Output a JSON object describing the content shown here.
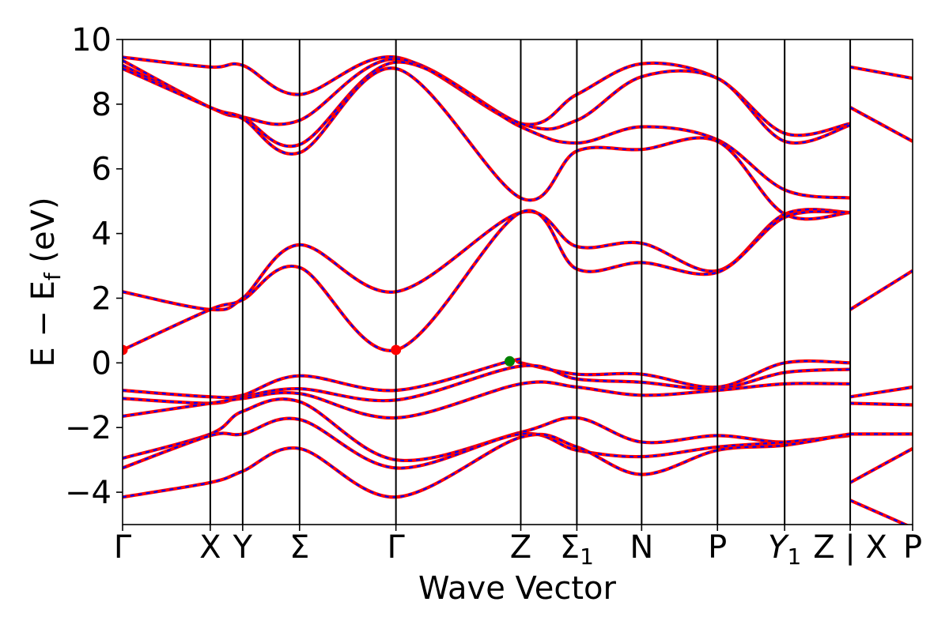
{
  "chart_data": {
    "type": "line",
    "xlabel": "Wave Vector",
    "ylabel": "E − E",
    "ylabel_sub": "f",
    "ylabel_unit": " (eV)",
    "ylim": [
      -5,
      10
    ],
    "xlim": [
      0,
      10
    ],
    "grid": false,
    "legend": "none",
    "y_ticks": [
      -4,
      -2,
      0,
      2,
      4,
      6,
      8,
      10
    ],
    "y_tick_labels": [
      "−4",
      "−2",
      "0",
      "2",
      "4",
      "6",
      "8",
      "10"
    ],
    "high_symmetry_points": [
      {
        "label": "Γ",
        "sub": "",
        "italic": false,
        "x": 0.0
      },
      {
        "label": "X",
        "sub": "",
        "italic": false,
        "x": 1.11
      },
      {
        "label": "Y",
        "sub": "",
        "italic": false,
        "x": 1.52
      },
      {
        "label": "Σ",
        "sub": "",
        "italic": false,
        "x": 2.24
      },
      {
        "label": "Γ",
        "sub": "",
        "italic": false,
        "x": 3.46
      },
      {
        "label": "Z",
        "sub": "",
        "italic": false,
        "x": 5.04
      },
      {
        "label": "Σ",
        "sub": "1",
        "italic": false,
        "x": 5.75
      },
      {
        "label": "N",
        "sub": "",
        "italic": false,
        "x": 6.57
      },
      {
        "label": "P",
        "sub": "",
        "italic": false,
        "x": 7.53
      },
      {
        "label": "Y",
        "sub": "1",
        "italic": true,
        "x": 8.38
      },
      {
        "label": "Z | X",
        "sub": "",
        "italic": false,
        "x": 9.21
      },
      {
        "label": "P",
        "sub": "",
        "italic": false,
        "x": 10.0
      }
    ],
    "series": [
      {
        "x": [
          0,
          1.11,
          1.52,
          2.24,
          3.46,
          5.04,
          5.75,
          6.57,
          7.53,
          8.38,
          9.21
        ],
        "y": [
          9.45,
          9.15,
          9.2,
          8.3,
          9.45,
          7.4,
          8.3,
          9.25,
          8.8,
          7.1,
          7.4
        ]
      },
      {
        "x": [
          0,
          1.11,
          1.52,
          2.24,
          3.46,
          5.04,
          5.75,
          6.57,
          7.53,
          8.38,
          9.21
        ],
        "y": [
          9.35,
          7.9,
          7.6,
          7.5,
          9.4,
          7.4,
          7.5,
          8.85,
          8.8,
          6.85,
          7.35
        ]
      },
      {
        "x": [
          0,
          1.11,
          1.52,
          2.24,
          3.46,
          5.04,
          5.75,
          6.57,
          7.53,
          8.38,
          9.21
        ],
        "y": [
          9.2,
          7.9,
          7.6,
          6.75,
          9.3,
          7.3,
          6.8,
          7.3,
          6.9,
          5.35,
          5.1
        ]
      },
      {
        "x": [
          0,
          1.11,
          1.52,
          2.24,
          3.46,
          5.04,
          5.75,
          6.57,
          7.53,
          8.38,
          9.21
        ],
        "y": [
          9.1,
          7.9,
          7.55,
          6.5,
          9.1,
          5.1,
          6.55,
          6.6,
          6.85,
          4.6,
          4.65
        ]
      },
      {
        "x": [
          0,
          1.11,
          1.52,
          2.24,
          3.46,
          5.04,
          5.75,
          6.57,
          7.53,
          8.38,
          9.21
        ],
        "y": [
          2.2,
          1.65,
          2.0,
          3.65,
          2.2,
          4.65,
          3.6,
          3.7,
          2.85,
          4.6,
          4.65
        ]
      },
      {
        "x": [
          0,
          1.11,
          1.52,
          2.24,
          3.46,
          5.04,
          5.75,
          6.57,
          7.53,
          8.38,
          9.21
        ],
        "y": [
          0.4,
          1.65,
          1.95,
          2.95,
          0.4,
          4.65,
          2.9,
          3.1,
          2.8,
          4.5,
          4.65
        ]
      },
      {
        "x": [
          0,
          1.11,
          1.52,
          2.24,
          3.46,
          4.9,
          5.04,
          5.75,
          6.57,
          7.53,
          8.38,
          9.21
        ],
        "y": [
          -0.85,
          -1.05,
          -1.0,
          -0.4,
          -0.85,
          0.05,
          0.0,
          -0.35,
          -0.35,
          -0.75,
          0.0,
          0.0
        ]
      },
      {
        "x": [
          0,
          1.11,
          1.52,
          2.24,
          3.46,
          5.04,
          5.75,
          6.57,
          7.53,
          8.38,
          9.21
        ],
        "y": [
          -1.1,
          -1.25,
          -1.05,
          -0.8,
          -1.15,
          -0.1,
          -0.5,
          -0.6,
          -0.8,
          -0.3,
          -0.2
        ]
      },
      {
        "x": [
          0,
          1.11,
          1.52,
          2.24,
          3.46,
          5.04,
          5.75,
          6.57,
          7.53,
          8.38,
          9.21
        ],
        "y": [
          -1.65,
          -1.25,
          -1.1,
          -0.95,
          -1.7,
          -0.65,
          -0.75,
          -1.0,
          -0.85,
          -0.65,
          -0.65
        ]
      },
      {
        "x": [
          0,
          1.11,
          1.52,
          2.24,
          3.46,
          5.04,
          5.75,
          6.57,
          7.53,
          8.38,
          9.21
        ],
        "y": [
          -2.95,
          -2.2,
          -1.5,
          -1.2,
          -3.0,
          -2.15,
          -1.7,
          -2.45,
          -2.25,
          -2.45,
          -2.2
        ]
      },
      {
        "x": [
          0,
          1.11,
          1.52,
          2.24,
          3.46,
          5.04,
          5.75,
          6.57,
          7.53,
          8.38,
          9.21
        ],
        "y": [
          -3.25,
          -2.25,
          -2.2,
          -1.75,
          -3.25,
          -2.2,
          -2.7,
          -2.9,
          -2.6,
          -2.45,
          -2.25
        ]
      },
      {
        "x": [
          0,
          1.11,
          1.52,
          2.24,
          3.46,
          5.04,
          5.75,
          6.57,
          7.53,
          8.38,
          9.21
        ],
        "y": [
          -4.15,
          -3.7,
          -3.35,
          -2.65,
          -4.15,
          -2.3,
          -2.6,
          -3.45,
          -2.7,
          -2.55,
          -2.2
        ]
      },
      {
        "x": [
          9.21,
          10.0
        ],
        "y": [
          9.15,
          8.8
        ]
      },
      {
        "x": [
          9.21,
          10.0
        ],
        "y": [
          7.9,
          6.85
        ]
      },
      {
        "x": [
          9.21,
          10.0
        ],
        "y": [
          1.65,
          2.85
        ]
      },
      {
        "x": [
          9.21,
          10.0
        ],
        "y": [
          -1.05,
          -0.75
        ]
      },
      {
        "x": [
          9.21,
          10.0
        ],
        "y": [
          -1.25,
          -1.3
        ]
      },
      {
        "x": [
          9.21,
          10.0
        ],
        "y": [
          -2.2,
          -2.2
        ]
      },
      {
        "x": [
          9.21,
          10.0
        ],
        "y": [
          -3.7,
          -2.65
        ]
      },
      {
        "x": [
          9.21,
          10.0
        ],
        "y": [
          -4.25,
          -5.1
        ]
      }
    ],
    "markers": [
      {
        "x": 0.0,
        "y": 0.4,
        "color": "#ff0000"
      },
      {
        "x": 3.46,
        "y": 0.4,
        "color": "#ff0000"
      },
      {
        "x": 4.9,
        "y": 0.05,
        "color": "#008000"
      }
    ],
    "colors": {
      "band_red": "#ff0000",
      "band_blue": "#0000ff",
      "vline": "#000000",
      "cbm_marker": "#ff0000",
      "vbm_marker": "#008000"
    }
  }
}
